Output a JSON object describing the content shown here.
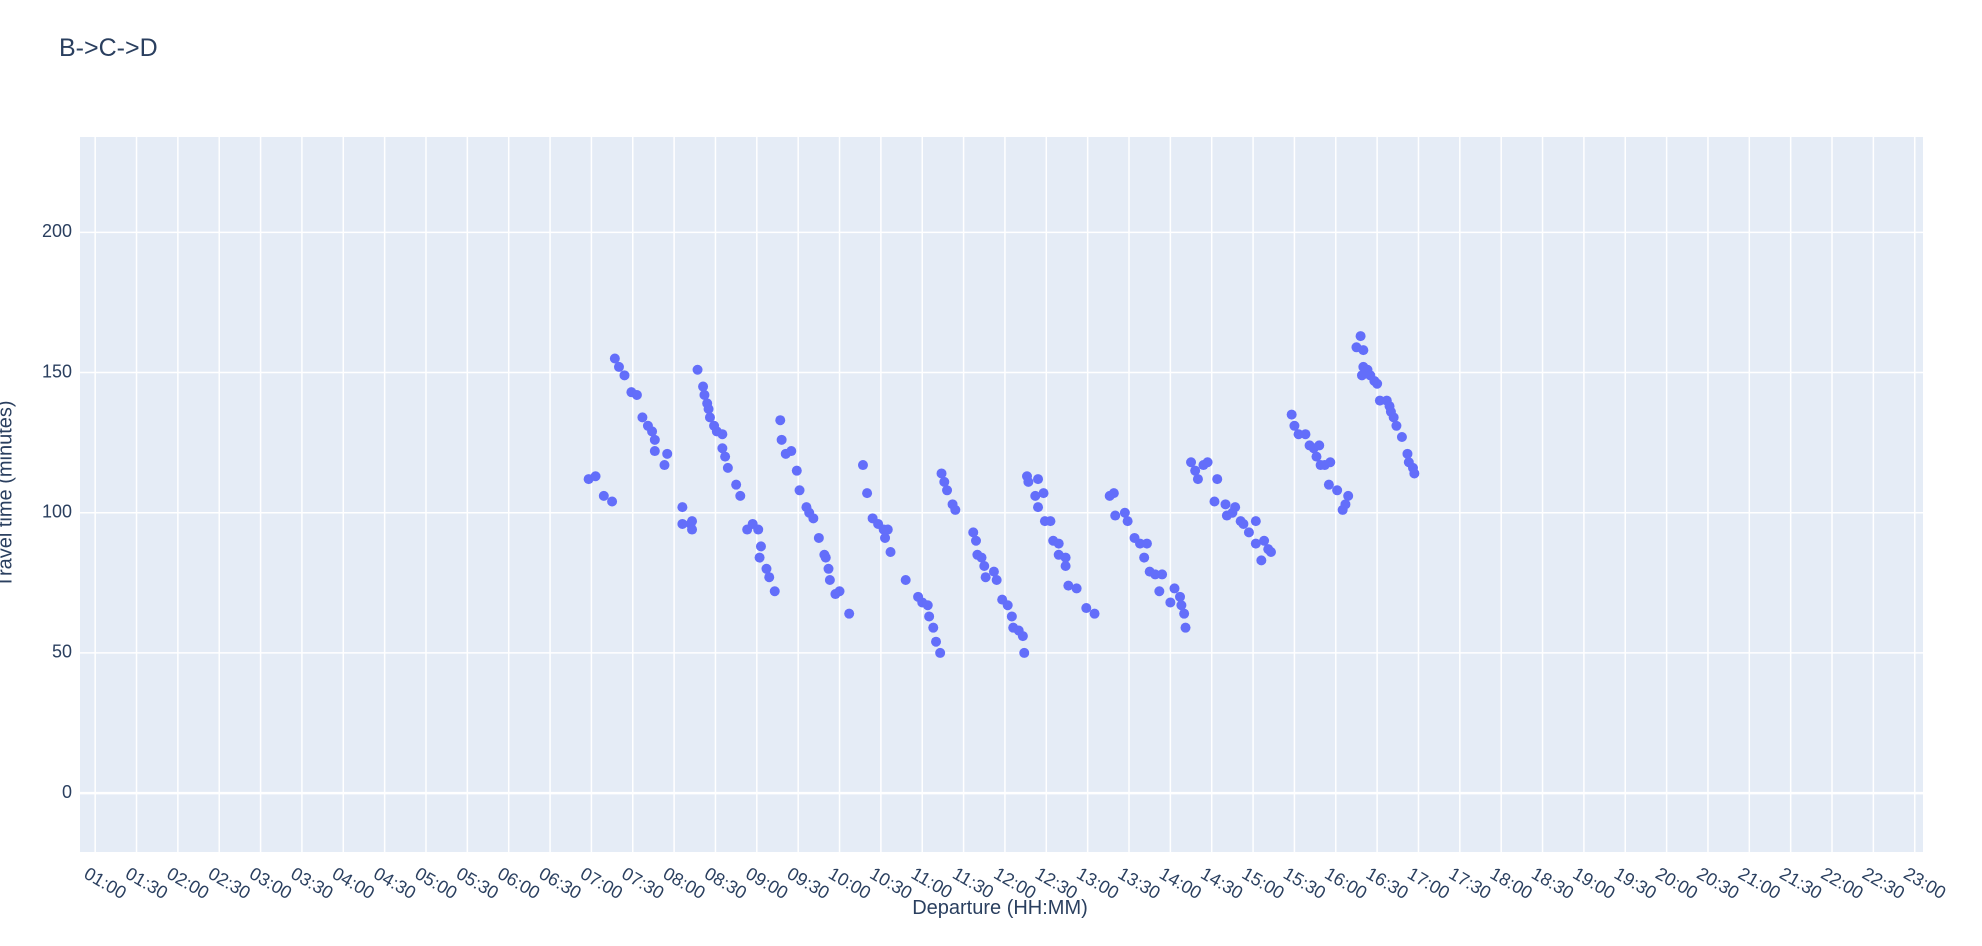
{
  "chart_data": {
    "type": "scatter",
    "title": "B->C->D",
    "x_label": "Departure (HH:MM)",
    "y_label": "Travel time (minutes)",
    "color": "#636efa",
    "grid": true,
    "xlim": [
      "00:49",
      "23:06"
    ],
    "ylim": [
      -21,
      234
    ],
    "yticks": [
      0,
      50,
      100,
      150,
      200
    ],
    "xticks": [
      "01:00",
      "01:30",
      "02:00",
      "02:30",
      "03:00",
      "03:30",
      "04:00",
      "04:30",
      "05:00",
      "05:30",
      "06:00",
      "06:30",
      "07:00",
      "07:30",
      "08:00",
      "08:30",
      "09:00",
      "09:30",
      "10:00",
      "10:30",
      "11:00",
      "11:30",
      "12:00",
      "12:30",
      "13:00",
      "13:30",
      "14:00",
      "14:30",
      "15:00",
      "15:30",
      "16:00",
      "16:30",
      "17:00",
      "17:30",
      "18:00",
      "18:30",
      "19:00",
      "19:30",
      "20:00",
      "20:30",
      "21:00",
      "21:30",
      "22:00",
      "22:30",
      "23:00"
    ],
    "x": [
      "06:58",
      "07:03",
      "07:09",
      "07:15",
      "07:17",
      "07:20",
      "07:24",
      "07:29",
      "07:33",
      "07:37",
      "07:41",
      "07:44",
      "07:46",
      "07:46",
      "07:55",
      "07:53",
      "08:06",
      "08:06",
      "08:12",
      "08:13",
      "08:13",
      "08:17",
      "08:21",
      "08:22",
      "08:24",
      "08:25",
      "08:26",
      "08:29",
      "08:31",
      "08:35",
      "08:35",
      "08:37",
      "08:39",
      "08:45",
      "08:48",
      "08:53",
      "08:57",
      "09:01",
      "09:03",
      "09:02",
      "09:07",
      "09:09",
      "09:13",
      "09:17",
      "09:18",
      "09:21",
      "09:25",
      "09:29",
      "09:31",
      "09:36",
      "09:38",
      "09:41",
      "09:45",
      "09:49",
      "09:50",
      "09:52",
      "09:53",
      "09:57",
      "10:00",
      "10:07",
      "10:17",
      "10:20",
      "10:24",
      "10:28",
      "10:32",
      "10:35",
      "10:33",
      "10:37",
      "10:48",
      "10:57",
      "11:00",
      "11:04",
      "11:05",
      "11:08",
      "11:10",
      "11:13",
      "11:14",
      "11:16",
      "11:18",
      "11:22",
      "11:24",
      "11:37",
      "11:39",
      "11:40",
      "11:43",
      "11:45",
      "11:46",
      "11:52",
      "11:54",
      "11:58",
      "12:02",
      "12:05",
      "12:06",
      "12:10",
      "12:13",
      "12:14",
      "12:16",
      "12:17",
      "12:24",
      "12:22",
      "12:24",
      "12:28",
      "12:29",
      "12:33",
      "12:35",
      "12:39",
      "12:39",
      "12:44",
      "12:44",
      "12:46",
      "12:52",
      "12:59",
      "13:05",
      "13:16",
      "13:19",
      "13:20",
      "13:27",
      "13:29",
      "13:34",
      "13:38",
      "13:41",
      "13:43",
      "13:45",
      "13:49",
      "13:52",
      "13:54",
      "14:00",
      "14:03",
      "14:07",
      "14:08",
      "14:10",
      "14:11",
      "14:15",
      "14:18",
      "14:20",
      "14:24",
      "14:27",
      "14:32",
      "14:34",
      "14:40",
      "14:41",
      "14:45",
      "14:47",
      "14:51",
      "14:53",
      "14:57",
      "15:02",
      "15:02",
      "15:06",
      "15:08",
      "15:11",
      "15:13",
      "15:28",
      "15:30",
      "15:33",
      "15:38",
      "15:41",
      "15:44",
      "15:48",
      "15:46",
      "15:49",
      "15:52",
      "15:56",
      "15:55",
      "16:01",
      "16:05",
      "16:07",
      "16:09",
      "16:18",
      "16:15",
      "16:20",
      "16:20",
      "16:23",
      "16:19",
      "16:25",
      "16:28",
      "16:30",
      "16:32",
      "16:37",
      "16:39",
      "16:40",
      "16:42",
      "16:44",
      "16:48",
      "16:52",
      "16:53",
      "16:56",
      "16:57"
    ],
    "values": [
      112,
      113,
      106,
      104,
      155,
      152,
      149,
      143,
      142,
      134,
      131,
      129,
      126,
      122,
      121,
      117,
      102,
      96,
      96,
      94,
      97,
      151,
      145,
      142,
      139,
      137,
      134,
      131,
      129,
      128,
      123,
      120,
      116,
      110,
      106,
      94,
      96,
      94,
      88,
      84,
      80,
      77,
      72,
      133,
      126,
      121,
      122,
      115,
      108,
      102,
      100,
      98,
      91,
      85,
      84,
      80,
      76,
      71,
      72,
      64,
      117,
      107,
      98,
      96,
      94,
      94,
      91,
      86,
      76,
      70,
      68,
      67,
      63,
      59,
      54,
      50,
      114,
      111,
      108,
      103,
      101,
      93,
      90,
      85,
      84,
      81,
      77,
      79,
      76,
      69,
      67,
      63,
      59,
      58,
      56,
      50,
      113,
      111,
      112,
      106,
      102,
      107,
      97,
      97,
      90,
      89,
      85,
      84,
      81,
      74,
      73,
      66,
      64,
      106,
      107,
      99,
      100,
      97,
      91,
      89,
      84,
      89,
      79,
      78,
      72,
      78,
      68,
      73,
      70,
      67,
      64,
      59,
      118,
      115,
      112,
      117,
      118,
      104,
      112,
      103,
      99,
      100,
      102,
      97,
      96,
      93,
      97,
      89,
      83,
      90,
      87,
      86,
      135,
      131,
      128,
      128,
      124,
      123,
      124,
      120,
      117,
      117,
      118,
      110,
      108,
      101,
      103,
      106,
      163,
      159,
      158,
      152,
      151,
      149,
      149,
      147,
      146,
      140,
      140,
      138,
      136,
      134,
      131,
      127,
      121,
      118,
      116,
      114
    ]
  }
}
